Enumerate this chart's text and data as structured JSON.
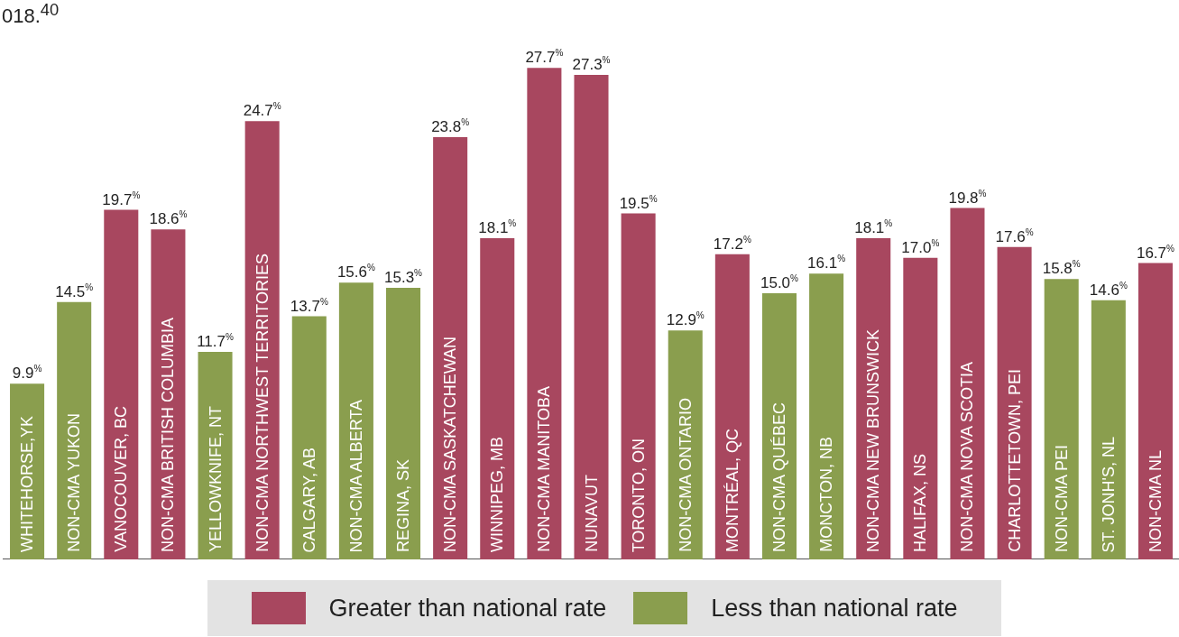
{
  "chart_data": {
    "type": "bar",
    "title": "018.$^{40}$",
    "stacked": true,
    "legend": "bottom",
    "categories": [
      "WHITEHORSE,YK",
      "NON-CMA YUKON",
      "VANOCOUVER, BC",
      "NON-CMA BRITISH COLUMBIA",
      "YELLOWKNIFE, NT",
      "NON-CMA NORTHWEST TERRITORIES",
      "CALGARY, AB",
      "NON-CMA ALBERTA",
      "REGINA, SK",
      "NON-CMA SASKATCHEWAN",
      "WINNIPEG, MB",
      "NON-CMA MANITOBA",
      "NUNAVUT",
      "TORONTO, ON",
      "NON-CMA ONTARIO",
      "MONTRÉAL, QC",
      "NON-CMA QUÉBEC",
      "MONCTON, NB",
      "NON-CMA NEW BRUNSWICK",
      "HALIFAX, NS",
      "NON-CMA NOVA SCOTIA",
      "CHARLOTTETOWN, PEI",
      "NON-CMA PEI",
      "ST. JONH'S, NL",
      "NON-CMA NL"
    ],
    "series": [
      {
        "name": "Greater than national rate",
        "color": "#a8475f",
        "values": [
          null,
          null,
          19.7,
          18.6,
          null,
          24.7,
          null,
          null,
          null,
          23.8,
          18.1,
          27.7,
          27.3,
          19.5,
          null,
          17.2,
          null,
          null,
          18.1,
          17.0,
          19.8,
          17.6,
          null,
          null,
          16.7
        ],
        "value_labels": [
          null,
          null,
          "19.7$^{%}$",
          "18.6$^{%}$",
          null,
          "24.7$^{%}$",
          null,
          null,
          null,
          "23.8$^{%}$",
          "18.1$^{%}$",
          "27.7$^{%}$",
          "27.3$^{%}$",
          "19.5$^{%}$",
          null,
          "17.2$^{%}$",
          null,
          null,
          "18.1$^{%}$",
          "17.0$^{%}$",
          "19.8$^{%}$",
          "17.6$^{%}$",
          null,
          null,
          "16.7$^{%}$"
        ]
      },
      {
        "name": "Less than national rate",
        "color": "#8a9e4e",
        "values": [
          9.9,
          14.5,
          null,
          null,
          11.7,
          null,
          13.7,
          15.6,
          15.3,
          null,
          null,
          null,
          null,
          null,
          12.9,
          null,
          15.0,
          16.1,
          null,
          null,
          null,
          null,
          15.8,
          14.6,
          null
        ],
        "value_labels": [
          "9.9$^{%}$",
          "14.5$^{%}$",
          null,
          null,
          "11.7$^{%}$",
          null,
          "13.7$^{%}$",
          "15.6$^{%}$",
          "15.3$^{%}$",
          null,
          null,
          null,
          null,
          null,
          "12.9$^{%}$",
          null,
          "15.0$^{%}$",
          "16.1$^{%}$",
          null,
          null,
          null,
          null,
          "15.8$^{%}$",
          "14.6$^{%}$",
          null
        ]
      }
    ]
  }
}
